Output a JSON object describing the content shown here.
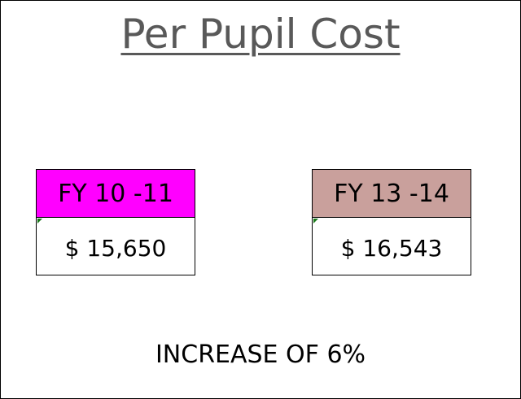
{
  "header": {
    "title": "Per Pupil Cost"
  },
  "boxes": [
    {
      "label": "FY 10 -11",
      "value": "$ 15,650"
    },
    {
      "label": "FY 13 -14",
      "value": "$ 16,543"
    }
  ],
  "footer": {
    "text": "INCREASE OF 6%"
  }
}
